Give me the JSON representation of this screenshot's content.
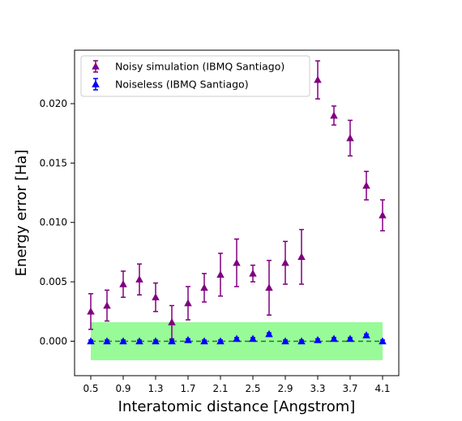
{
  "chart_data": {
    "type": "scatter",
    "xlabel": "Interatomic distance [Angstrom]",
    "ylabel": "Energy error [Ha]",
    "xlim": [
      0.3,
      4.3
    ],
    "ylim": [
      -0.0029,
      0.0245
    ],
    "xticks": [
      0.5,
      0.9,
      1.3,
      1.7,
      2.1,
      2.5,
      2.9,
      3.3,
      3.7,
      4.1
    ],
    "xtick_labels": [
      "0.5",
      "0.9",
      "1.3",
      "1.7",
      "2.1",
      "2.5",
      "2.9",
      "3.3",
      "3.7",
      "4.1"
    ],
    "yticks": [
      0.0,
      0.005,
      0.01,
      0.015,
      0.02
    ],
    "ytick_labels": [
      "0.000",
      "0.005",
      "0.010",
      "0.015",
      "0.020"
    ],
    "grid": false,
    "legend_position": "top-left",
    "chemical_accuracy_band": {
      "y0": -0.0016,
      "y1": 0.0016,
      "x0": 0.5,
      "x1": 4.1,
      "color": "#98fb98"
    },
    "reference_line": {
      "y": 0.0,
      "style": "dashed",
      "color": "#1f7a1f"
    },
    "x": [
      0.5,
      0.7,
      0.9,
      1.1,
      1.3,
      1.5,
      1.7,
      1.9,
      2.1,
      2.3,
      2.5,
      2.7,
      2.9,
      3.1,
      3.3,
      3.5,
      3.7,
      3.9,
      4.1
    ],
    "series": [
      {
        "name": "Noisy simulation (IBMQ Santiago)",
        "color": "#800080",
        "marker": "triangle-up",
        "values": [
          0.0025,
          0.003,
          0.0048,
          0.0052,
          0.0037,
          0.0016,
          0.0032,
          0.0045,
          0.0056,
          0.0066,
          0.0057,
          0.0045,
          0.0066,
          0.0071,
          0.022,
          0.019,
          0.0171,
          0.0131,
          0.0106
        ],
        "errors": [
          0.0015,
          0.0013,
          0.0011,
          0.0013,
          0.0012,
          0.0014,
          0.0014,
          0.0012,
          0.0018,
          0.002,
          0.0007,
          0.0023,
          0.0018,
          0.0023,
          0.0016,
          0.0008,
          0.0015,
          0.0012,
          0.0013
        ]
      },
      {
        "name": "Noiseless (IBMQ Santiago)",
        "color": "#0000ff",
        "marker": "triangle-up",
        "values": [
          0.0,
          0.0,
          0.0,
          0.0,
          0.0,
          0.0,
          0.0001,
          0.0,
          0.0,
          0.0002,
          0.0002,
          0.0006,
          0.0,
          0.0,
          0.0001,
          0.0002,
          0.0002,
          0.0005,
          0.0
        ],
        "errors": [
          0.0001,
          0.0001,
          0.0001,
          0.0001,
          0.0001,
          0.0001,
          0.0001,
          0.0001,
          0.0001,
          0.0001,
          0.0001,
          0.0001,
          0.0001,
          0.0001,
          0.0001,
          0.0001,
          0.0001,
          0.0001,
          0.0001
        ]
      }
    ]
  }
}
